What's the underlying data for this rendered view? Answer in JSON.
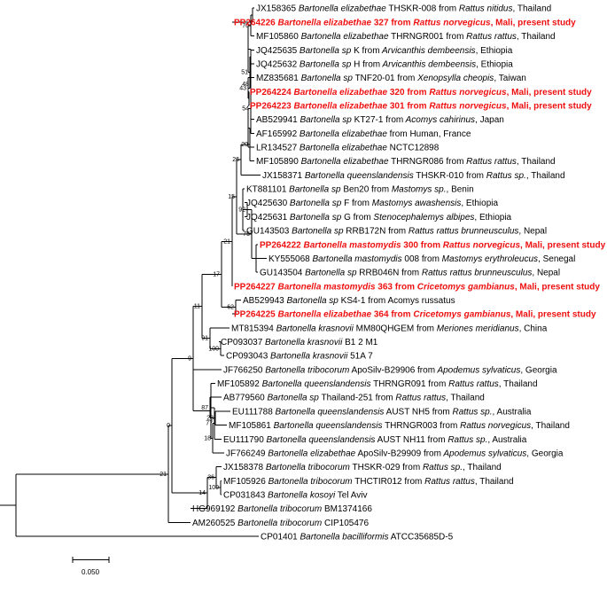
{
  "tree": {
    "leaves": [
      {
        "id": "L0",
        "acc": "JX158365",
        "sp": "Bartonella elizabethae",
        "rest": "THSKR-008 from",
        "host": "Rattus nitidus",
        "loc": ", Thailand",
        "hl": false
      },
      {
        "id": "L1",
        "acc": "PP264226",
        "sp": "Bartonella elizabethae",
        "rest": "327 from",
        "host": "Rattus norvegicus",
        "loc": ", Mali, present study",
        "hl": true
      },
      {
        "id": "L2",
        "acc": "MF105860",
        "sp": "Bartonella elizabethae",
        "rest": "THRNGR001 from",
        "host": "Rattus rattus",
        "loc": ", Thailand",
        "hl": false
      },
      {
        "id": "L3",
        "acc": "JQ425635",
        "sp": "Bartonella sp",
        "rest": "K from",
        "host": "Arvicanthis dembeensis",
        "loc": ", Ethiopia",
        "hl": false
      },
      {
        "id": "L4",
        "acc": "JQ425632",
        "sp": "Bartonella sp",
        "rest": "H from",
        "host": "Arvicanthis dembeensis",
        "loc": ", Ethiopia",
        "hl": false
      },
      {
        "id": "L5",
        "acc": "MZ835681",
        "sp": "Bartonella sp",
        "rest": "TNF20-01 from",
        "host": "Xenopsylla cheopis",
        "loc": ", Taiwan",
        "hl": false
      },
      {
        "id": "L6",
        "acc": "PP264224",
        "sp": "Bartonella elizabethae",
        "rest": "320 from",
        "host": "Rattus norvegicus",
        "loc": ", Mali, present study",
        "hl": true
      },
      {
        "id": "L7",
        "acc": "PP264223",
        "sp": "Bartonella elizabethae",
        "rest": "301 from",
        "host": "Rattus norvegicus",
        "loc": ", Mali, present study",
        "hl": true
      },
      {
        "id": "L8",
        "acc": "AB529941",
        "sp": "Bartonella sp",
        "rest": "KT27-1 from",
        "host": "Acomys cahirinus",
        "loc": ", Japan",
        "hl": false
      },
      {
        "id": "L9",
        "acc": "AF165992",
        "sp": "Bartonella elizabethae",
        "rest": "from Human, France",
        "host": "",
        "loc": "",
        "hl": false
      },
      {
        "id": "L10",
        "acc": "LR134527",
        "sp": "Bartonella elizabethae",
        "rest": "NCTC12898",
        "host": "",
        "loc": "",
        "hl": false
      },
      {
        "id": "L11",
        "acc": "MF105890",
        "sp": "Bartonella elizabethae",
        "rest": "THRNGR086 from",
        "host": "Rattus rattus",
        "loc": ", Thailand",
        "hl": false
      },
      {
        "id": "L12",
        "acc": "JX158371",
        "sp": "Bartonella queenslandensis",
        "rest": "THSKR-010 from",
        "host": "Rattus sp.",
        "loc": ", Thailand",
        "hl": false
      },
      {
        "id": "L13",
        "acc": "KT881101",
        "sp": "Bartonella sp",
        "rest": "Ben20 from",
        "host": "Mastomys sp.",
        "loc": ", Benin",
        "hl": false
      },
      {
        "id": "L14",
        "acc": "JQ425630",
        "sp": "Bartonella sp",
        "rest": "F from",
        "host": "Mastomys awashensis",
        "loc": ", Ethiopia",
        "hl": false
      },
      {
        "id": "L15",
        "acc": "JQ425631",
        "sp": "Bartonella sp",
        "rest": "G from",
        "host": "Stenocephalemys albipes",
        "loc": ", Ethiopia",
        "hl": false
      },
      {
        "id": "L16",
        "acc": "GU143503",
        "sp": "Bartonella sp",
        "rest": "RRB172N from",
        "host": "Rattus rattus brunneusculus",
        "loc": ", Nepal",
        "hl": false
      },
      {
        "id": "L17",
        "acc": "PP264222",
        "sp": "Bartonella mastomydis",
        "rest": " 300 from",
        "host": "Rattus norvegicus",
        "loc": ", Mali, present study",
        "hl": true
      },
      {
        "id": "L18",
        "acc": "KY555068",
        "sp": "Bartonella mastomydis",
        "rest": "008 from",
        "host": "Mastomys erythroleucus",
        "loc": ", Senegal",
        "hl": false
      },
      {
        "id": "L19",
        "acc": "GU143504",
        "sp": "Bartonella sp",
        "rest": "RRB046N from",
        "host": "Rattus rattus brunneusculus",
        "loc": ", Nepal",
        "hl": false
      },
      {
        "id": "L20",
        "acc": "PP264227",
        "sp": "Bartonella mastomydis",
        "rest": "363 from",
        "host": "Cricetomys gambianus",
        "loc": ", Mali, present study",
        "hl": true
      },
      {
        "id": "L21",
        "acc": "AB529943",
        "sp": "Bartonella sp",
        "rest": "KS4-1 from Acomys russatus",
        "host": "",
        "loc": "",
        "hl": false
      },
      {
        "id": "L22",
        "acc": "PP264225",
        "sp": "Bartonella elizabethae",
        "rest": "364 from",
        "host": "Cricetomys gambianus",
        "loc": ", Mali, present study",
        "hl": true
      },
      {
        "id": "L23",
        "acc": "MT815394",
        "sp": "Bartonella krasnovii",
        "rest": "MM80QHGEM from",
        "host": "Meriones meridianus",
        "loc": ", China",
        "hl": false
      },
      {
        "id": "L24",
        "acc": "CP093037",
        "sp": "Bartonella krasnovii",
        "rest": "B1 2 M1",
        "host": "",
        "loc": "",
        "hl": false
      },
      {
        "id": "L25",
        "acc": "CP093043",
        "sp": "Bartonella krasnovii",
        "rest": "51A 7",
        "host": "",
        "loc": "",
        "hl": false
      },
      {
        "id": "L26",
        "acc": "JF766250",
        "sp": "Bartonella tribocorum",
        "rest": "ApoSilv-B29906 from",
        "host": "Apodemus sylvaticus",
        "loc": ", Georgia",
        "hl": false
      },
      {
        "id": "L27",
        "acc": "MF105892",
        "sp": "Bartonella queenslandensis",
        "rest": "THRNGR091 from",
        "host": "Rattus rattus",
        "loc": ", Thailand",
        "hl": false
      },
      {
        "id": "L28",
        "acc": "AB779560",
        "sp": "Bartonella sp",
        "rest": "Thailand-251 from",
        "host": "Rattus rattus",
        "loc": ", Thailand",
        "hl": false
      },
      {
        "id": "L29",
        "acc": "EU111788",
        "sp": "Bartonella queenslandensis",
        "rest": "AUST NH5 from",
        "host": "Rattus sp.",
        "loc": ", Australia",
        "hl": false
      },
      {
        "id": "L30",
        "acc": "MF105861",
        "sp": "Bartonella queenslandensis",
        "rest": "THRNGR003 from",
        "host": "Rattus norvegicus",
        "loc": ", Thailand",
        "hl": false
      },
      {
        "id": "L31",
        "acc": "EU111790",
        "sp": "Bartonella queenslandensis",
        "rest": "AUST NH11 from",
        "host": "Rattus sp.",
        "loc": ", Australia",
        "hl": false
      },
      {
        "id": "L32",
        "acc": "JF766249",
        "sp": "Bartonella elizabethae",
        "rest": "ApoSilv-B29909 from",
        "host": "Apodemus sylvaticus",
        "loc": ", Georgia",
        "hl": false
      },
      {
        "id": "L33",
        "acc": "JX158378",
        "sp": "Bartonella tribocorum",
        "rest": "THSKR-029 from",
        "host": "Rattus sp.",
        "loc": ", Thailand",
        "hl": false
      },
      {
        "id": "L34",
        "acc": "MF105926",
        "sp": "Bartonella tribocorum",
        "rest": "THCTIR012 from",
        "host": "Rattus rattus",
        "loc": ", Thailand",
        "hl": false
      },
      {
        "id": "L35",
        "acc": "CP031843",
        "sp": "Bartonella kosoyi",
        "rest": "Tel Aviv",
        "host": "",
        "loc": "",
        "hl": false
      },
      {
        "id": "L36",
        "acc": "HG969192",
        "sp": "Bartonella tribocorum",
        "rest": "BM1374166",
        "host": "",
        "loc": "",
        "hl": false
      },
      {
        "id": "L37",
        "acc": "AM260525",
        "sp": "Bartonella tribocorum",
        "rest": "CIP105476",
        "host": "",
        "loc": "",
        "hl": false
      },
      {
        "id": "L38",
        "acc": "CP01401",
        "sp": "Bartonella bacilliformis",
        "rest": "ATCC35685D-5",
        "host": "",
        "loc": "",
        "hl": false
      }
    ],
    "bootstrap_values": [
      "70",
      "51",
      "43",
      "48",
      "54",
      "20",
      "26",
      "92",
      "75",
      "15",
      "21",
      "17",
      "62",
      "11",
      "91",
      "100",
      "9",
      "21",
      "0",
      "23",
      "87",
      "77",
      "18",
      "14",
      "36",
      "100"
    ],
    "scale_bar": {
      "label": "0.050",
      "length": 0.05
    }
  }
}
